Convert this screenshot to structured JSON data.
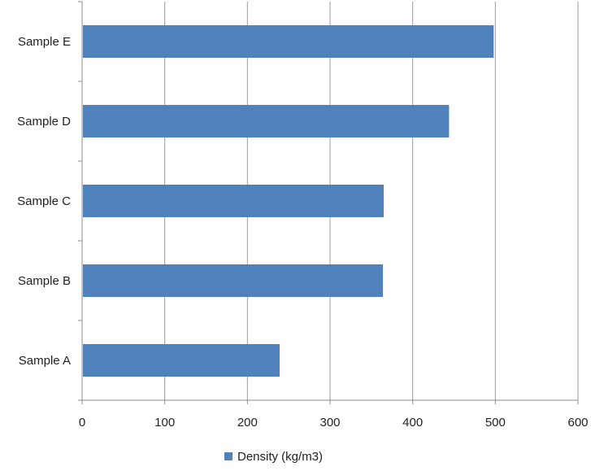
{
  "chart_data": {
    "type": "bar",
    "orientation": "horizontal",
    "title": "",
    "xlabel": "",
    "ylabel": "",
    "categories": [
      "Sample A",
      "Sample B",
      "Sample C",
      "Sample D",
      "Sample E"
    ],
    "series": [
      {
        "name": "Density (kg/m3)",
        "values": [
          238,
          363,
          364,
          443,
          497
        ],
        "color": "#4F81BD"
      }
    ],
    "xlim": [
      0,
      600
    ],
    "xticks": [
      "0",
      "100",
      "200",
      "300",
      "400",
      "500",
      "600"
    ],
    "grid": "vertical",
    "legend_position": "bottom"
  },
  "colors": {
    "bar": "#4F81BD",
    "grid": "#9a9a9a",
    "axis": "#8c8c8c"
  }
}
